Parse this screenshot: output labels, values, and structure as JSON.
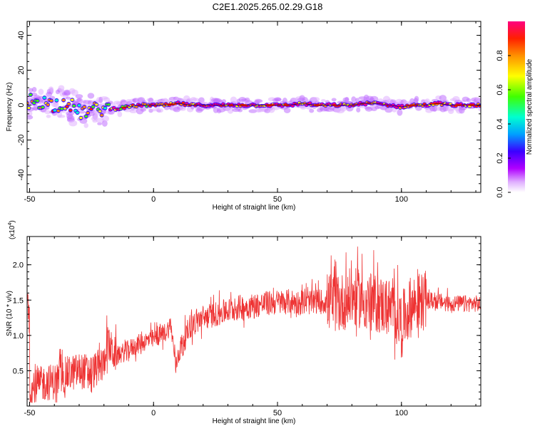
{
  "title": "C2E1.2025.265.02.29.G18",
  "chart_data": [
    {
      "type": "heatmap",
      "xlabel": "Height of straight line (km)",
      "ylabel": "Frequency (Hz)",
      "xlim": [
        -51,
        132
      ],
      "ylim": [
        -50,
        48
      ],
      "xticks": [
        -50,
        0,
        50,
        100
      ],
      "yticks": [
        -40,
        -20,
        0,
        20,
        40
      ],
      "colorbar": {
        "label": "Normalized spectral amplitude",
        "range": [
          0,
          1
        ],
        "ticks": [
          "0.0",
          "0.2",
          "0.4",
          "0.6",
          "0.8"
        ],
        "colors": [
          "#ffffff",
          "#b000ff",
          "#3a00ff",
          "#00a0ff",
          "#00ffd0",
          "#40ff00",
          "#ffff00",
          "#ff9000",
          "#ff2000",
          "#ff0080"
        ]
      },
      "dominant_frequency_trace": {
        "x": [
          -50,
          -45,
          -40,
          -35,
          -30,
          -25,
          -20,
          -15,
          -10,
          -5,
          0,
          5,
          10,
          15,
          20,
          25,
          30,
          35,
          40,
          45,
          50,
          55,
          60,
          65,
          70,
          75,
          80,
          85,
          90,
          95,
          100,
          105,
          110,
          115,
          120,
          125,
          130
        ],
        "y": [
          3,
          2,
          0,
          2,
          -4,
          -3,
          -2,
          -2,
          -1,
          0,
          0,
          0,
          1,
          0,
          0,
          0,
          0,
          0,
          0,
          0,
          0,
          0,
          1,
          0,
          0,
          0,
          0,
          1,
          1,
          0,
          -1,
          0,
          0,
          1,
          0,
          0,
          0
        ]
      }
    },
    {
      "type": "line",
      "xlabel": "Height of straight line (km)",
      "ylabel": "SNR (10 * v/v)",
      "y_multiplier": "(x10",
      "y_multiplier_exp": "4",
      "xlim": [
        -51,
        132
      ],
      "ylim": [
        0,
        24000
      ],
      "xticks": [
        -50,
        0,
        50,
        100
      ],
      "yticks": [
        "0.5",
        "1.0",
        "1.5",
        "2.0"
      ],
      "color": "#ee3333",
      "series": [
        {
          "x": [
            -50,
            -45,
            -40,
            -35,
            -30,
            -25,
            -20,
            -19,
            -15,
            -10,
            -5,
            0,
            5,
            7,
            9,
            10,
            15,
            20,
            25,
            30,
            35,
            40,
            45,
            50,
            55,
            60,
            65,
            70,
            75,
            80,
            85,
            90,
            95,
            100,
            105,
            110,
            115,
            120,
            125,
            130,
            132
          ],
          "y": [
            2000,
            3200,
            3500,
            4500,
            5000,
            4800,
            6000,
            9000,
            7000,
            8000,
            9000,
            9500,
            10500,
            11500,
            5500,
            7500,
            11500,
            12500,
            13000,
            13500,
            14000,
            14200,
            14500,
            14700,
            14800,
            14600,
            14800,
            14800,
            14500,
            15500,
            15000,
            14500,
            14000,
            12000,
            14500,
            15000,
            14800,
            14500,
            14500,
            14500,
            14400
          ]
        }
      ]
    }
  ]
}
